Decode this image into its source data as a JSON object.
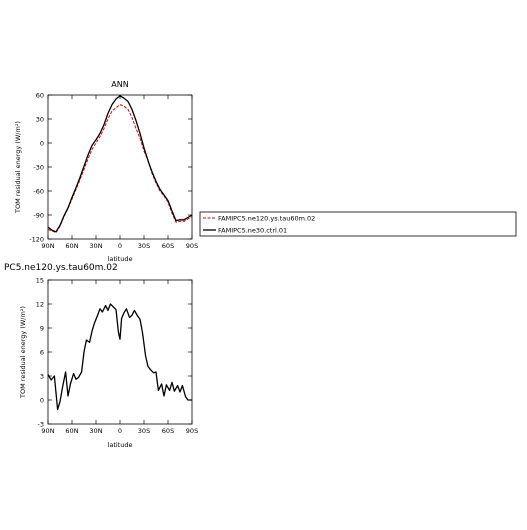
{
  "chart_data": [
    {
      "type": "line",
      "title": "ANN",
      "xlabel": "latitude",
      "ylabel": "TOM residual energy (W/m²)",
      "xlim": [
        90,
        -90
      ],
      "ylim": [
        -120,
        60
      ],
      "xtick_labels": [
        "90N",
        "60N",
        "30N",
        "0",
        "30S",
        "60S",
        "90S"
      ],
      "xtick_values": [
        90,
        60,
        30,
        0,
        -30,
        -60,
        -90
      ],
      "ytick_values": [
        -120,
        -90,
        -60,
        -30,
        0,
        30,
        60
      ],
      "x": [
        90,
        85,
        80,
        75,
        70,
        65,
        60,
        55,
        50,
        45,
        40,
        35,
        30,
        25,
        20,
        15,
        10,
        5,
        0,
        -5,
        -10,
        -15,
        -20,
        -25,
        -30,
        -35,
        -40,
        -45,
        -50,
        -55,
        -60,
        -65,
        -70,
        -75,
        -80,
        -85,
        -90
      ],
      "series": [
        {
          "name": "FAMIPC5.ne120.ys.tau60m.02",
          "color": "#e00000",
          "dashed": true,
          "values": [
            -108,
            -110,
            -112,
            -104,
            -92,
            -82,
            -70,
            -58,
            -46,
            -33,
            -20,
            -8,
            0,
            8,
            18,
            30,
            40,
            44,
            48,
            46,
            42,
            32,
            18,
            6,
            -10,
            -22,
            -38,
            -50,
            -60,
            -66,
            -74,
            -88,
            -99,
            -98,
            -98,
            -95,
            -92
          ]
        },
        {
          "name": "FAMIPC5.ne30.ctrl.01",
          "color": "#000000",
          "dashed": false,
          "values": [
            -105,
            -109,
            -111,
            -103,
            -91,
            -81,
            -68,
            -56,
            -43,
            -29,
            -15,
            -3,
            4,
            12,
            23,
            37,
            48,
            55,
            59,
            56,
            52,
            42,
            28,
            12,
            -6,
            -22,
            -36,
            -48,
            -58,
            -65,
            -72,
            -85,
            -97,
            -96,
            -96,
            -93,
            -90
          ]
        }
      ],
      "legend_position": "right"
    },
    {
      "type": "line",
      "title": "PC5.ne120.ys.tau60m.02",
      "xlabel": "latitude",
      "ylabel": "TOM residual energy (W/m²)",
      "xlim": [
        90,
        -90
      ],
      "ylim": [
        -3,
        15
      ],
      "xtick_labels": [
        "90N",
        "60N",
        "30N",
        "0",
        "30S",
        "60S",
        "90S"
      ],
      "xtick_values": [
        90,
        60,
        30,
        0,
        -30,
        -60,
        -90
      ],
      "ytick_values": [
        -3,
        0,
        3,
        6,
        9,
        12,
        15
      ],
      "x": [
        90,
        86,
        82,
        78,
        75,
        72,
        68,
        65,
        62,
        58,
        55,
        52,
        48,
        45,
        42,
        38,
        35,
        32,
        28,
        25,
        22,
        18,
        15,
        12,
        8,
        5,
        2,
        0,
        -2,
        -5,
        -8,
        -12,
        -15,
        -18,
        -22,
        -25,
        -28,
        -30,
        -32,
        -35,
        -38,
        -42,
        -45,
        -48,
        -52,
        -55,
        -58,
        -62,
        -65,
        -68,
        -72,
        -75,
        -78,
        -82,
        -85,
        -88,
        -90
      ],
      "series": [
        {
          "name": "",
          "color": "#000000",
          "dashed": false,
          "values": [
            3.2,
            2.5,
            3.0,
            -1.2,
            -0.2,
            1.5,
            3.5,
            0.5,
            2.0,
            3.3,
            2.6,
            2.8,
            3.5,
            6.0,
            7.5,
            7.2,
            8.6,
            9.6,
            10.6,
            11.4,
            11.0,
            11.8,
            11.2,
            12.0,
            11.6,
            11.3,
            8.5,
            7.6,
            10.2,
            10.9,
            11.4,
            10.3,
            10.6,
            11.2,
            10.5,
            10.1,
            8.5,
            7.0,
            5.5,
            4.2,
            3.8,
            3.4,
            3.5,
            1.2,
            2.0,
            0.5,
            1.9,
            1.2,
            2.2,
            1.1,
            1.8,
            1.0,
            1.8,
            0.4,
            0.0,
            0.0,
            0.0
          ]
        }
      ]
    }
  ]
}
